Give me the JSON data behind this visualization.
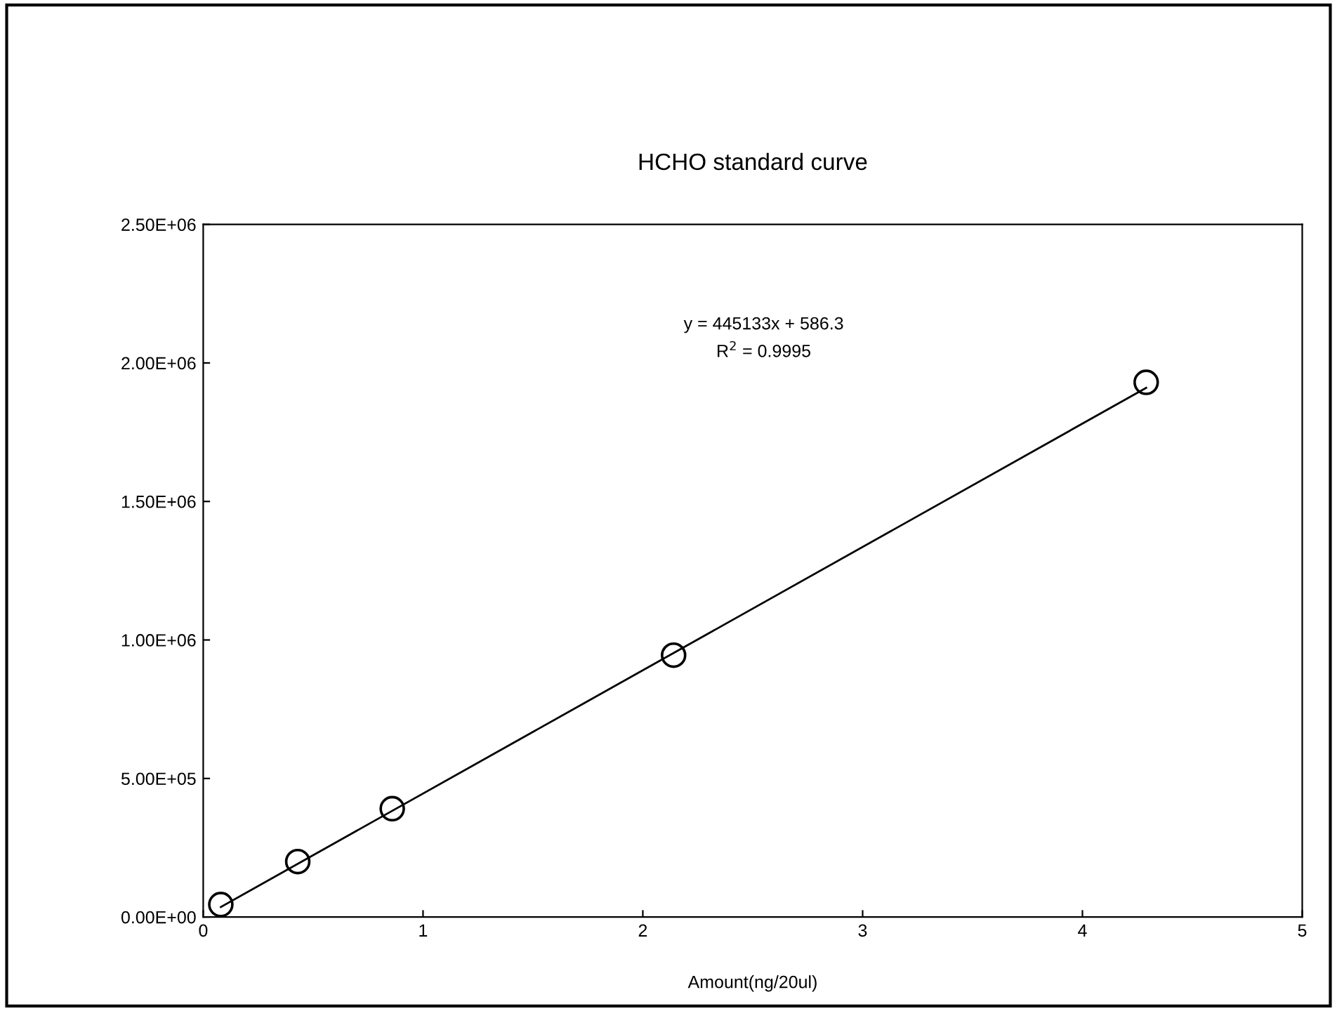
{
  "chart_data": {
    "type": "scatter",
    "title": "HCHO standard curve",
    "xlabel": "Amount(ng/20ul)",
    "series": [
      {
        "color": "#000000",
        "marker": "circle",
        "x": [
          0.08,
          0.43,
          0.86,
          2.14,
          4.29
        ],
        "values": [
          45000,
          200000,
          391000,
          945000,
          1930000
        ]
      },
      {
        "type": "line",
        "color": "#000000",
        "marker": "none",
        "line_style": "solid",
        "x": [
          0.08,
          4.29
        ],
        "values": [
          36000,
          1910000
        ]
      }
    ],
    "xlim": [
      0,
      5
    ],
    "xticks": [
      0,
      1,
      2,
      3,
      4,
      5
    ],
    "ylim": [
      0,
      2500000
    ],
    "yticks": [
      {
        "value": 0,
        "label": "0.00E+00"
      },
      {
        "value": 500000,
        "label": "5.00E+05"
      },
      {
        "value": 1000000,
        "label": "1.00E+06"
      },
      {
        "value": 1500000,
        "label": "1.50E+06"
      },
      {
        "value": 2000000,
        "label": "2.00E+06"
      },
      {
        "value": 2500000,
        "label": "2.50E+06"
      }
    ],
    "annotations": [
      "y = 445133x + 586.3",
      "R$^{2}$ = 0.9995"
    ],
    "grid": false
  }
}
